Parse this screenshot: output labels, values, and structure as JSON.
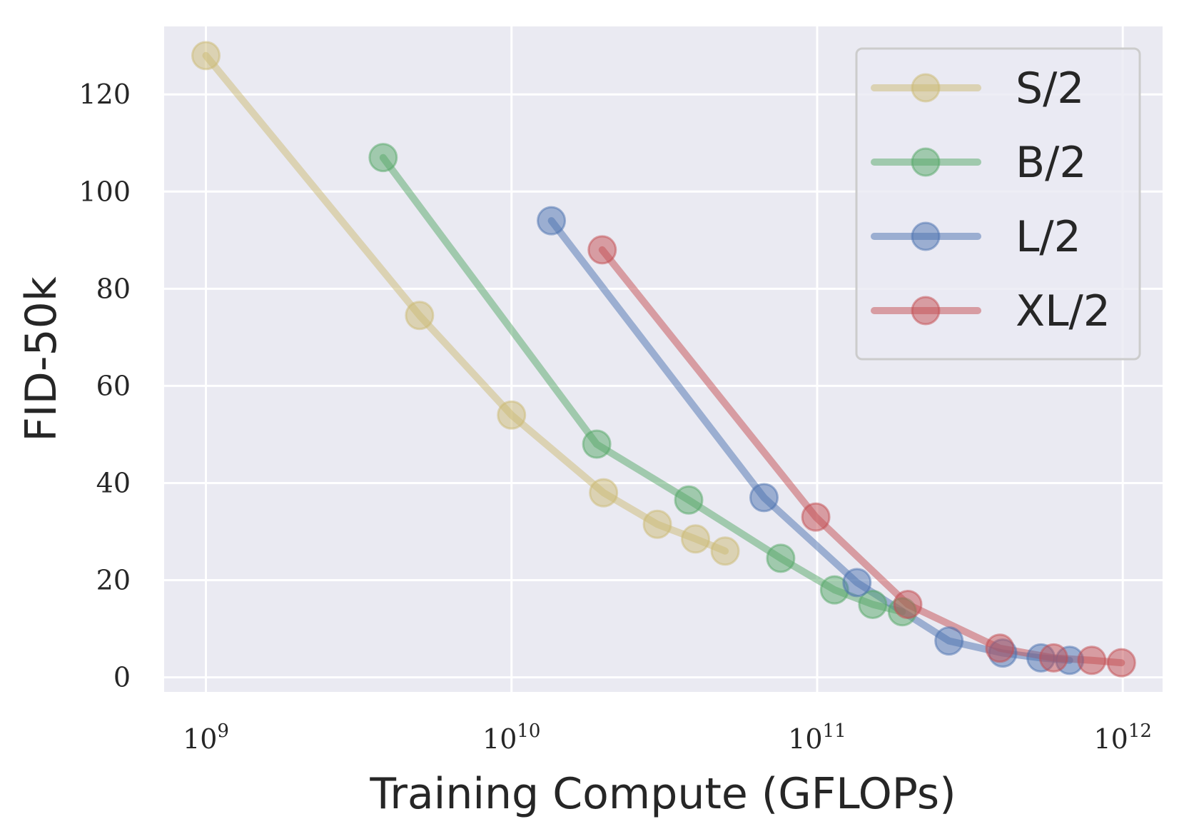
{
  "chart_data": {
    "type": "line",
    "title": "",
    "xlabel": "Training Compute (GFLOPs)",
    "ylabel": "FID-50k",
    "xscale": "log",
    "xlim": [
      730000000.0,
      1350000000000.0
    ],
    "ylim": [
      -3,
      134
    ],
    "grid": true,
    "legend_position": "top-right",
    "yticks": [
      0,
      20,
      40,
      60,
      80,
      100,
      120
    ],
    "xticks": [
      {
        "value": 1000000000.0,
        "base": "10",
        "exponent": "9"
      },
      {
        "value": 10000000000.0,
        "base": "10",
        "exponent": "10"
      },
      {
        "value": 100000000000.0,
        "base": "10",
        "exponent": "11"
      },
      {
        "value": 1000000000000.0,
        "base": "10",
        "exponent": "12"
      }
    ],
    "series": [
      {
        "name": "S/2",
        "color": "#ccb974",
        "points": [
          {
            "x": 1000000000.0,
            "y": 128.0
          },
          {
            "x": 5000000000.0,
            "y": 74.5
          },
          {
            "x": 10000000000.0,
            "y": 54.0
          },
          {
            "x": 20000000000.0,
            "y": 38.0
          },
          {
            "x": 30000000000.0,
            "y": 31.5
          },
          {
            "x": 40000000000.0,
            "y": 28.5
          },
          {
            "x": 50000000000.0,
            "y": 26.0
          }
        ]
      },
      {
        "name": "B/2",
        "color": "#55a868",
        "points": [
          {
            "x": 3800000000.0,
            "y": 107.0
          },
          {
            "x": 19000000000.0,
            "y": 48.0
          },
          {
            "x": 38000000000.0,
            "y": 36.5
          },
          {
            "x": 76000000000.0,
            "y": 24.5
          },
          {
            "x": 114000000000.0,
            "y": 18.0
          },
          {
            "x": 152000000000.0,
            "y": 15.0
          },
          {
            "x": 190000000000.0,
            "y": 13.5
          }
        ]
      },
      {
        "name": "L/2",
        "color": "#4c72b0",
        "points": [
          {
            "x": 13500000000.0,
            "y": 94.0
          },
          {
            "x": 67000000000.0,
            "y": 37.0
          },
          {
            "x": 135000000000.0,
            "y": 19.5
          },
          {
            "x": 270000000000.0,
            "y": 7.5
          },
          {
            "x": 405000000000.0,
            "y": 5.0
          },
          {
            "x": 540000000000.0,
            "y": 4.0
          },
          {
            "x": 670000000000.0,
            "y": 3.5
          }
        ]
      },
      {
        "name": "XL/2",
        "color": "#c44e52",
        "points": [
          {
            "x": 19800000000.0,
            "y": 88.0
          },
          {
            "x": 99000000000.0,
            "y": 33.0
          },
          {
            "x": 198000000000.0,
            "y": 15.0
          },
          {
            "x": 396000000000.0,
            "y": 6.0
          },
          {
            "x": 594000000000.0,
            "y": 4.0
          },
          {
            "x": 792000000000.0,
            "y": 3.5
          },
          {
            "x": 990000000000.0,
            "y": 3.0
          }
        ]
      }
    ]
  }
}
